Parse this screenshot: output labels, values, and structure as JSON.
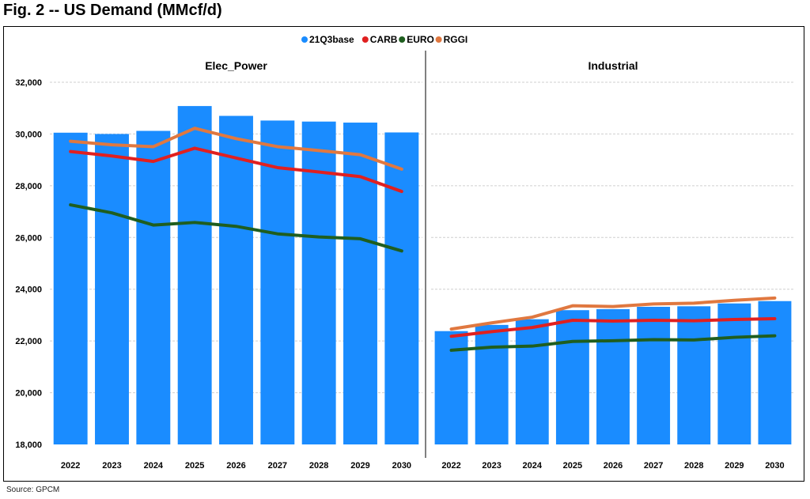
{
  "figure": {
    "title": "Fig. 2 -- US Demand (MMcf/d)",
    "source": "Source: GPCM"
  },
  "chart_data": {
    "type": "bar",
    "categories": [
      "2022",
      "2023",
      "2024",
      "2025",
      "2026",
      "2027",
      "2028",
      "2029",
      "2030"
    ],
    "ylim": [
      18000,
      32000
    ],
    "yticks": [
      18000,
      20000,
      22000,
      24000,
      26000,
      28000,
      30000,
      32000
    ],
    "ytick_labels": [
      "18,000",
      "20,000",
      "22,000",
      "24,000",
      "26,000",
      "28,000",
      "30,000",
      "32,000"
    ],
    "grid": true,
    "legend_position": "top-center",
    "legend": [
      {
        "name": "21Q3base",
        "type": "bar",
        "color": "#1a8cff"
      },
      {
        "name": "CARB",
        "type": "line",
        "color": "#e02020"
      },
      {
        "name": "EURO",
        "type": "line",
        "color": "#1f5e1f"
      },
      {
        "name": "RGGI",
        "type": "line",
        "color": "#e07840"
      }
    ],
    "panels": [
      {
        "title": "Elec_Power",
        "bars": {
          "name": "21Q3base",
          "values": [
            30050,
            30000,
            30120,
            31080,
            30700,
            30520,
            30480,
            30440,
            30060
          ]
        },
        "lines": [
          {
            "name": "CARB",
            "values": [
              29320,
              29150,
              28940,
              29450,
              29070,
              28700,
              28530,
              28350,
              27780
            ]
          },
          {
            "name": "EURO",
            "values": [
              27260,
              26950,
              26480,
              26580,
              26430,
              26140,
              26020,
              25950,
              25480
            ]
          },
          {
            "name": "RGGI",
            "values": [
              29720,
              29580,
              29510,
              30220,
              29820,
              29510,
              29360,
              29200,
              28640
            ]
          }
        ]
      },
      {
        "title": "Industrial",
        "bars": {
          "name": "21Q3base",
          "values": [
            22380,
            22620,
            22840,
            23190,
            23230,
            23320,
            23340,
            23450,
            23540
          ]
        },
        "lines": [
          {
            "name": "CARB",
            "values": [
              22180,
              22360,
              22520,
              22800,
              22770,
              22800,
              22780,
              22830,
              22860
            ]
          },
          {
            "name": "EURO",
            "values": [
              21640,
              21760,
              21800,
              21980,
              22010,
              22050,
              22040,
              22140,
              22200
            ]
          },
          {
            "name": "RGGI",
            "values": [
              22460,
              22700,
              22920,
              23360,
              23330,
              23430,
              23460,
              23570,
              23660
            ]
          }
        ]
      }
    ]
  }
}
